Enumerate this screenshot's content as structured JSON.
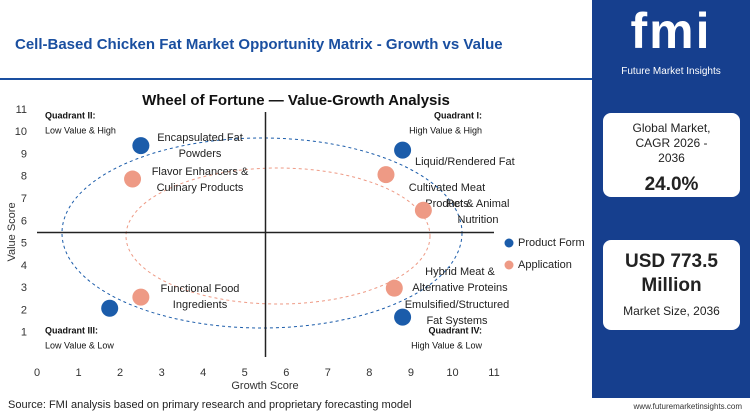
{
  "header": {
    "title": "Cell-Based Chicken Fat Market Opportunity Matrix - Growth vs Value"
  },
  "chart_data": {
    "type": "scatter",
    "title": "Wheel of Fortune — Value-Growth Analysis",
    "x_label": "Growth Score",
    "y_label": "Value Score",
    "xlim": [
      0,
      11
    ],
    "ylim": [
      0,
      11
    ],
    "xticks": [
      0,
      1,
      2,
      3,
      4,
      5,
      6,
      7,
      8,
      9,
      10,
      11
    ],
    "yticks": [
      1,
      2,
      3,
      4,
      5,
      6,
      7,
      8,
      9,
      10,
      11
    ],
    "legend": "right",
    "quadrants": [
      {
        "title": "Quadrant II:",
        "subtitle": "Low Value & High"
      },
      {
        "title": "Quadrant I:",
        "subtitle": "High Value & High"
      },
      {
        "title": "Quadrant III:",
        "subtitle": "Low Value & Low"
      },
      {
        "title": "Quadrant IV:",
        "subtitle": "High Value & Low"
      }
    ],
    "series": [
      {
        "name": "Product Form",
        "color": "#1b5caa",
        "x": [
          2.5,
          8.8,
          1.75,
          8.8
        ],
        "values": [
          9.4,
          9.2,
          2.1,
          1.7
        ],
        "labels": [
          "Encapsulated Fat Powders",
          "Liquid/Rendered Fat",
          null,
          "Emulsified/Structured Fat Systems"
        ]
      },
      {
        "name": "Application",
        "color": "#ee9a85",
        "x": [
          2.3,
          8.4,
          9.3,
          2.5,
          8.6
        ],
        "values": [
          7.9,
          8.1,
          6.5,
          2.6,
          3.0
        ],
        "labels": [
          "Flavor Enhancers & Culinary Products",
          "Cultivated Meat Products",
          "Pet & Animal Nutrition",
          "Functional Food Ingredients",
          "Hybrid Meat & Alternative Proteins"
        ]
      }
    ]
  },
  "sidebar": {
    "logo": "fmi",
    "brand": "Future Market Insights",
    "cards": [
      {
        "label": "Global Market, CAGR 2026 - 2036",
        "value": "24.0%"
      },
      {
        "value": "USD 773.5 Million",
        "label": "Market Size, 2036"
      }
    ]
  },
  "footer": {
    "source": "Source: FMI analysis based on primary research and proprietary forecasting model",
    "url": "www.futuremarketinsights.com"
  }
}
